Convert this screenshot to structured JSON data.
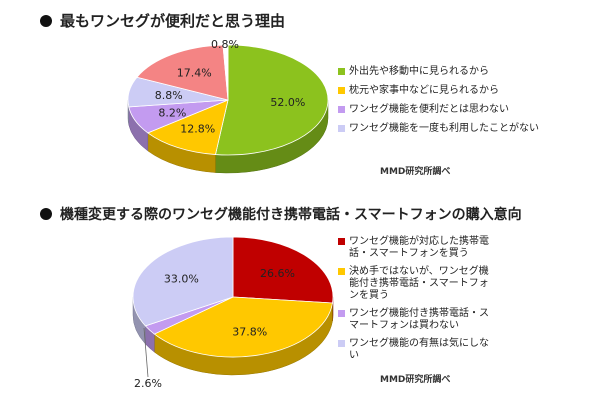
{
  "colors": {
    "green": "#8cc21e",
    "yellow": "#ffc800",
    "purple": "#c39bf0",
    "lavender": "#ccccf5",
    "salmon": "#f48484",
    "red": "#c00000"
  },
  "chart_data": [
    {
      "type": "pie",
      "title": "最もワンセグが便利だと思う理由",
      "series": [
        {
          "name": "外出先や移動中に見られるから",
          "value": 52.0,
          "label": "52.0%",
          "color": "#8cc21e"
        },
        {
          "name": "枕元や家事中などに見られるから",
          "value": 12.8,
          "label": "12.8%",
          "color": "#ffc800"
        },
        {
          "name": "ワンセグ機能を便利だとは思わない",
          "value": 8.2,
          "label": "8.2%",
          "color": "#c39bf0"
        },
        {
          "name": "ワンセグ機能を一度も利用したことがない",
          "value": 8.8,
          "label": "8.8%",
          "color": "#ccccf5"
        },
        {
          "name": "",
          "value": 17.4,
          "label": "17.4%",
          "color": "#f48484"
        },
        {
          "name": "",
          "value": 0.8,
          "label": "0.8%",
          "color": "#ffffff"
        }
      ],
      "legend_position": "right",
      "source": "MMD研究所調べ"
    },
    {
      "type": "pie",
      "title": "機種変更する際のワンセグ機能付き携帯電話・スマートフォンの購入意向",
      "series": [
        {
          "name": "ワンセグ機能が対応した携帯電話・スマートフォンを買う",
          "value": 26.6,
          "label": "26.6%",
          "color": "#c00000"
        },
        {
          "name": "決め手ではないが、ワンセグ機能付き携帯電話・スマートフォンを買う",
          "value": 37.8,
          "label": "37.8%",
          "color": "#ffc800"
        },
        {
          "name": "ワンセグ機能付き携帯電話・スマートフォンは買わない",
          "value": 2.6,
          "label": "2.6%",
          "color": "#c39bf0"
        },
        {
          "name": "ワンセグ機能の有無は気にしない",
          "value": 33.0,
          "label": "33.0%",
          "color": "#ccccf5"
        }
      ],
      "legend_position": "right",
      "source": "MMD研究所調べ"
    }
  ]
}
